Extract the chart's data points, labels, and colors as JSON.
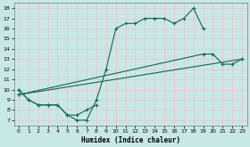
{
  "background_color": "#c8e8e8",
  "grid_color": "#d0d0d0",
  "line_color": "#1a6b5a",
  "xlabel": "Humidex (Indice chaleur)",
  "xlim": [
    -0.5,
    23.5
  ],
  "ylim": [
    6.5,
    18.5
  ],
  "xticks": [
    0,
    1,
    2,
    3,
    4,
    5,
    6,
    7,
    8,
    9,
    10,
    11,
    12,
    13,
    14,
    15,
    16,
    17,
    18,
    19,
    20,
    21,
    22,
    23
  ],
  "yticks": [
    7,
    8,
    9,
    10,
    11,
    12,
    13,
    14,
    15,
    16,
    17,
    18
  ],
  "line1_x": [
    0,
    1,
    2,
    3,
    4,
    5,
    6,
    7,
    8,
    9,
    10,
    11,
    12,
    13,
    14,
    15,
    16,
    17,
    18,
    19
  ],
  "line1_y": [
    10,
    9,
    8.5,
    8.5,
    8.5,
    7.5,
    7,
    7,
    9,
    12,
    16,
    16.5,
    16.5,
    17,
    17,
    17,
    16.5,
    17,
    18,
    16
  ],
  "line2_x": [
    0,
    1,
    2,
    3,
    4,
    5,
    6,
    7,
    8
  ],
  "line2_y": [
    10,
    9,
    8.5,
    8.5,
    8.5,
    7.5,
    7.5,
    8,
    8.5
  ],
  "line3_x": [
    0,
    23
  ],
  "line3_y": [
    9.5,
    13
  ],
  "line4_x": [
    0,
    19,
    20,
    21,
    22,
    23
  ],
  "line4_y": [
    9.5,
    13.5,
    13.5,
    12.5,
    12.5,
    13
  ]
}
